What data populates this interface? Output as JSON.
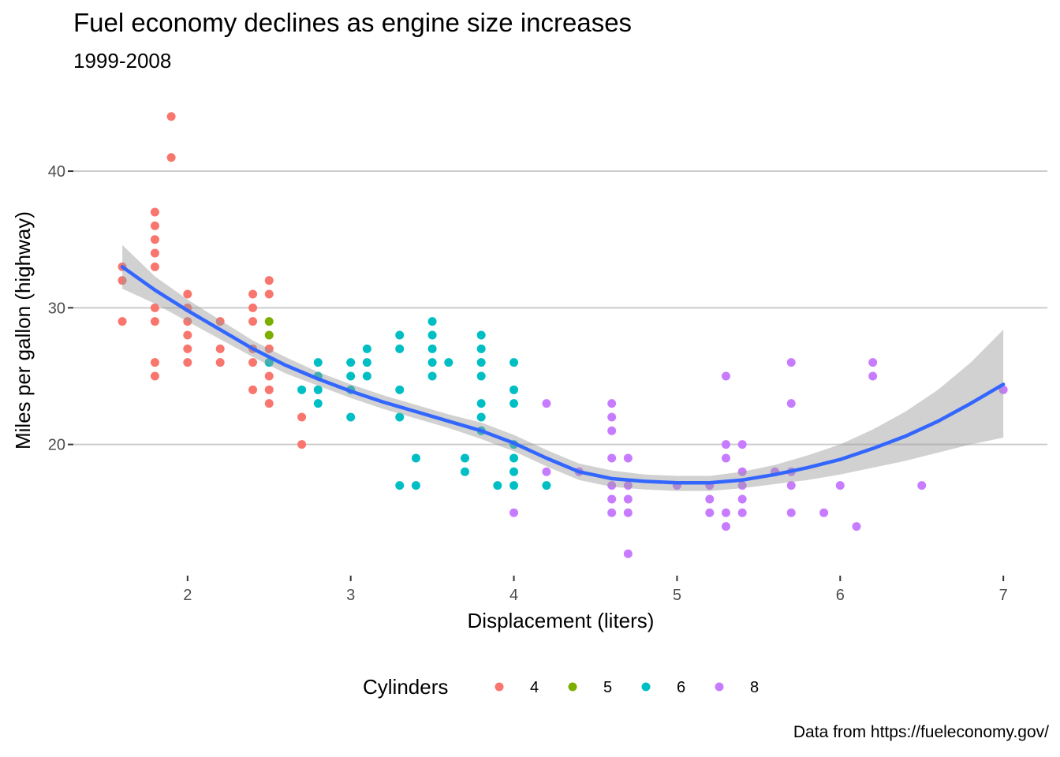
{
  "chart_data": {
    "type": "scatter",
    "title": "Fuel economy declines as engine size increases",
    "subtitle": "1999-2008",
    "caption": "Data from https://fueleconomy.gov/",
    "xlabel": "Displacement (liters)",
    "ylabel": "Miles per gallon (highway)",
    "xlim": [
      1.3,
      7.27
    ],
    "ylim": [
      10.4,
      45.6
    ],
    "x_ticks": [
      2,
      3,
      4,
      5,
      6,
      7
    ],
    "y_ticks": [
      20,
      30,
      40
    ],
    "grid": "horizontal major only",
    "legend": {
      "title": "Cylinders",
      "placement": "bottom",
      "entries": [
        {
          "label": "4",
          "color": "#F8766D"
        },
        {
          "label": "5",
          "color": "#7CAE00"
        },
        {
          "label": "6",
          "color": "#00BFC4"
        },
        {
          "label": "8",
          "color": "#C77CFF"
        }
      ]
    },
    "series": [
      {
        "name": "4",
        "color": "#F8766D",
        "points": [
          [
            1.6,
            33
          ],
          [
            1.6,
            32
          ],
          [
            1.6,
            29
          ],
          [
            1.8,
            37
          ],
          [
            1.8,
            36
          ],
          [
            1.8,
            35
          ],
          [
            1.8,
            34
          ],
          [
            1.8,
            33
          ],
          [
            1.8,
            30
          ],
          [
            1.8,
            29
          ],
          [
            1.8,
            26
          ],
          [
            1.8,
            25
          ],
          [
            1.9,
            44
          ],
          [
            1.9,
            41
          ],
          [
            2.0,
            31
          ],
          [
            2.0,
            30
          ],
          [
            2.0,
            29
          ],
          [
            2.0,
            28
          ],
          [
            2.0,
            27
          ],
          [
            2.0,
            26
          ],
          [
            2.2,
            29
          ],
          [
            2.2,
            27
          ],
          [
            2.2,
            26
          ],
          [
            2.4,
            31
          ],
          [
            2.4,
            30
          ],
          [
            2.4,
            29
          ],
          [
            2.4,
            27
          ],
          [
            2.4,
            26
          ],
          [
            2.4,
            24
          ],
          [
            2.5,
            32
          ],
          [
            2.5,
            31
          ],
          [
            2.5,
            27
          ],
          [
            2.5,
            26
          ],
          [
            2.5,
            25
          ],
          [
            2.5,
            24
          ],
          [
            2.5,
            23
          ],
          [
            2.7,
            22
          ],
          [
            2.7,
            20
          ]
        ]
      },
      {
        "name": "5",
        "color": "#7CAE00",
        "points": [
          [
            2.5,
            29
          ],
          [
            2.5,
            28
          ]
        ]
      },
      {
        "name": "6",
        "color": "#00BFC4",
        "points": [
          [
            2.5,
            26
          ],
          [
            2.7,
            24
          ],
          [
            2.8,
            26
          ],
          [
            2.8,
            25
          ],
          [
            2.8,
            24
          ],
          [
            2.8,
            23
          ],
          [
            3.0,
            26
          ],
          [
            3.0,
            25
          ],
          [
            3.0,
            24
          ],
          [
            3.0,
            22
          ],
          [
            3.1,
            27
          ],
          [
            3.1,
            26
          ],
          [
            3.1,
            25
          ],
          [
            3.3,
            28
          ],
          [
            3.3,
            27
          ],
          [
            3.3,
            24
          ],
          [
            3.3,
            22
          ],
          [
            3.3,
            17
          ],
          [
            3.4,
            19
          ],
          [
            3.4,
            17
          ],
          [
            3.5,
            29
          ],
          [
            3.5,
            28
          ],
          [
            3.5,
            27
          ],
          [
            3.5,
            26
          ],
          [
            3.5,
            25
          ],
          [
            3.6,
            26
          ],
          [
            3.7,
            19
          ],
          [
            3.7,
            18
          ],
          [
            3.8,
            28
          ],
          [
            3.8,
            27
          ],
          [
            3.8,
            26
          ],
          [
            3.8,
            25
          ],
          [
            3.8,
            23
          ],
          [
            3.8,
            22
          ],
          [
            3.8,
            21
          ],
          [
            3.9,
            17
          ],
          [
            4.0,
            26
          ],
          [
            4.0,
            24
          ],
          [
            4.0,
            23
          ],
          [
            4.0,
            20
          ],
          [
            4.0,
            19
          ],
          [
            4.0,
            18
          ],
          [
            4.0,
            17
          ],
          [
            4.2,
            17
          ]
        ]
      },
      {
        "name": "8",
        "color": "#C77CFF",
        "points": [
          [
            4.0,
            15
          ],
          [
            4.2,
            23
          ],
          [
            4.2,
            18
          ],
          [
            4.4,
            18
          ],
          [
            4.6,
            23
          ],
          [
            4.6,
            22
          ],
          [
            4.6,
            21
          ],
          [
            4.6,
            19
          ],
          [
            4.6,
            17
          ],
          [
            4.6,
            16
          ],
          [
            4.6,
            15
          ],
          [
            4.7,
            19
          ],
          [
            4.7,
            17
          ],
          [
            4.7,
            16
          ],
          [
            4.7,
            15
          ],
          [
            4.7,
            12
          ],
          [
            5.0,
            17
          ],
          [
            5.2,
            17
          ],
          [
            5.2,
            16
          ],
          [
            5.2,
            15
          ],
          [
            5.3,
            25
          ],
          [
            5.3,
            20
          ],
          [
            5.3,
            19
          ],
          [
            5.3,
            15
          ],
          [
            5.3,
            14
          ],
          [
            5.4,
            20
          ],
          [
            5.4,
            18
          ],
          [
            5.4,
            17
          ],
          [
            5.4,
            16
          ],
          [
            5.4,
            15
          ],
          [
            5.6,
            18
          ],
          [
            5.7,
            26
          ],
          [
            5.7,
            23
          ],
          [
            5.7,
            18
          ],
          [
            5.7,
            17
          ],
          [
            5.7,
            15
          ],
          [
            5.9,
            15
          ],
          [
            6.0,
            17
          ],
          [
            6.1,
            14
          ],
          [
            6.2,
            26
          ],
          [
            6.2,
            25
          ],
          [
            6.5,
            17
          ],
          [
            7.0,
            24
          ]
        ]
      }
    ],
    "smooth": {
      "method": "loess",
      "color": "#3366FF",
      "band_color": "#999999",
      "x": [
        1.6,
        1.8,
        2.0,
        2.2,
        2.4,
        2.6,
        2.8,
        3.0,
        3.2,
        3.4,
        3.6,
        3.8,
        4.0,
        4.2,
        4.4,
        4.6,
        4.8,
        5.0,
        5.2,
        5.4,
        5.6,
        5.8,
        6.0,
        6.2,
        6.4,
        6.6,
        6.8,
        7.0
      ],
      "y": [
        33.0,
        31.3,
        29.8,
        28.4,
        27.0,
        25.8,
        24.8,
        23.9,
        23.1,
        22.4,
        21.7,
        21.0,
        20.1,
        19.0,
        18.0,
        17.5,
        17.3,
        17.2,
        17.2,
        17.4,
        17.8,
        18.3,
        18.9,
        19.7,
        20.6,
        21.7,
        23.0,
        24.4
      ],
      "upper": [
        34.6,
        32.3,
        30.6,
        29.1,
        27.6,
        26.4,
        25.3,
        24.4,
        23.6,
        22.9,
        22.2,
        21.6,
        20.7,
        19.6,
        18.6,
        18.1,
        17.8,
        17.7,
        17.7,
        18.0,
        18.5,
        19.2,
        20.0,
        21.1,
        22.4,
        24.0,
        26.0,
        28.4
      ],
      "lower": [
        31.4,
        30.3,
        29.0,
        27.7,
        26.4,
        25.2,
        24.3,
        23.4,
        22.6,
        21.9,
        21.2,
        20.4,
        19.5,
        18.4,
        17.4,
        16.9,
        16.7,
        16.6,
        16.6,
        16.8,
        17.1,
        17.4,
        17.8,
        18.3,
        18.8,
        19.4,
        20.0,
        20.5
      ]
    }
  }
}
